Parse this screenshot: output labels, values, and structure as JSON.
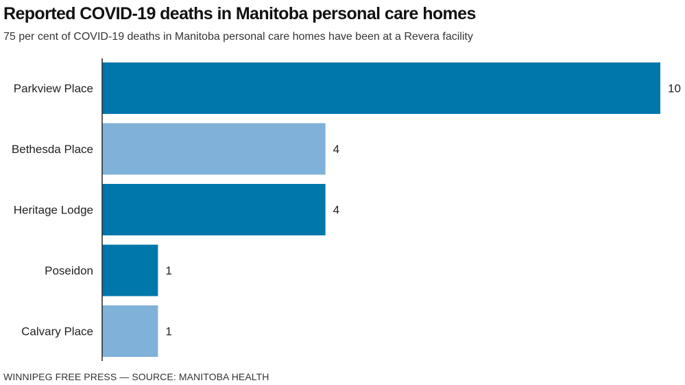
{
  "title": "Reported COVID-19 deaths in Manitoba personal care homes",
  "subtitle": "75 per cent of COVID-19 deaths in Manitoba personal care homes have been at a Revera facility",
  "source": "WINNIPEG FREE PRESS — SOURCE: MANITOBA HEALTH",
  "colors": {
    "dark": "#0077ab",
    "light": "#80b1d9",
    "axis": "#222222"
  },
  "chart_data": {
    "type": "bar",
    "orientation": "horizontal",
    "categories": [
      "Parkview Place",
      "Bethesda Place",
      "Heritage Lodge",
      "Poseidon",
      "Calvary Place"
    ],
    "values": [
      10,
      4,
      4,
      1,
      1
    ],
    "bar_colors": [
      "dark",
      "light",
      "dark",
      "dark",
      "light"
    ],
    "xlim": [
      0,
      10
    ],
    "data_labels": true,
    "grid": false
  }
}
